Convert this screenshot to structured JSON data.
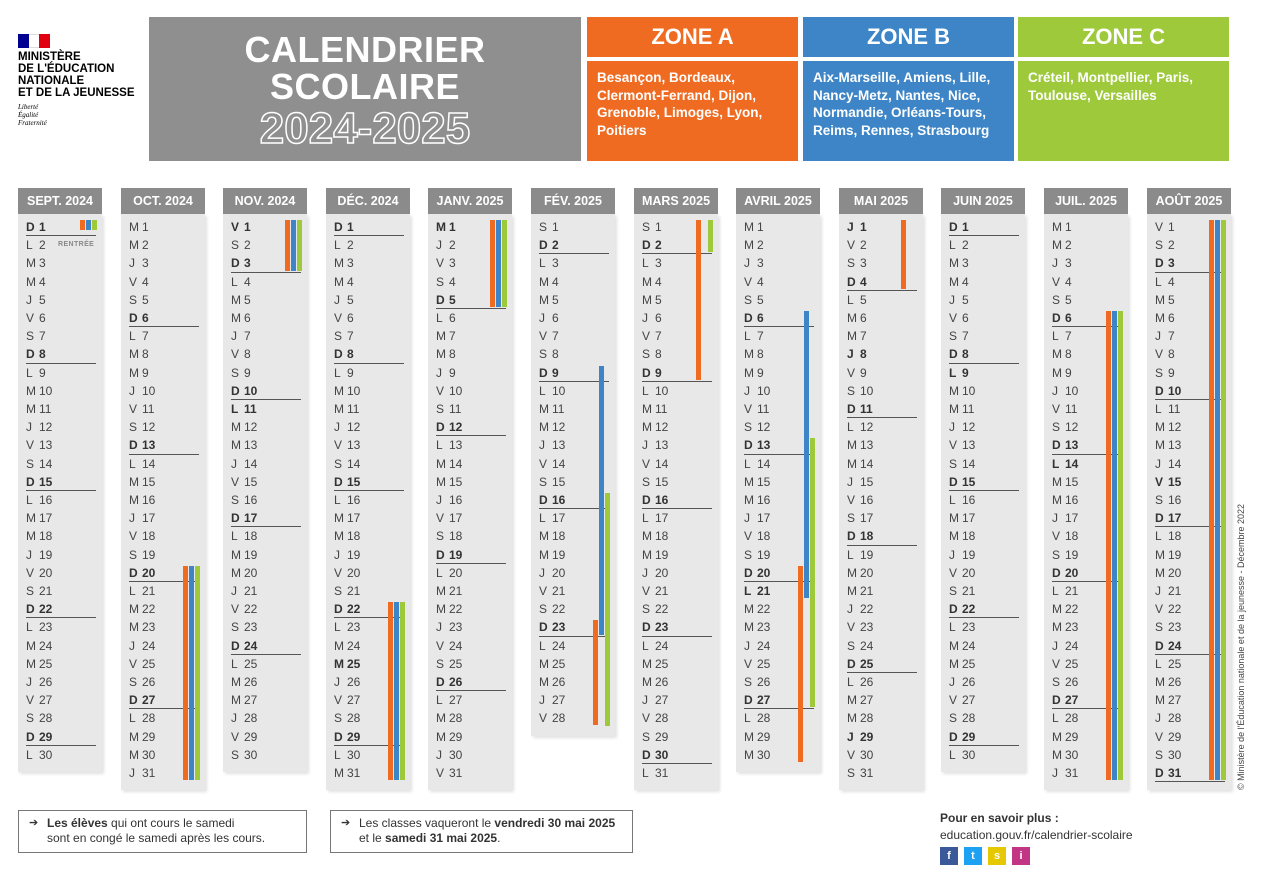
{
  "logo": {
    "lines": [
      "MINISTÈRE",
      "DE L'ÉDUCATION",
      "NATIONALE",
      "ET DE LA JEUNESSE"
    ],
    "motto": [
      "Liberté",
      "Égalité",
      "Fraternité"
    ],
    "flag_colors": [
      "#000091",
      "#ffffff",
      "#e1000f"
    ]
  },
  "title": {
    "line1": "CALENDRIER",
    "line2": "SCOLAIRE",
    "years": "2024-2025"
  },
  "colors": {
    "zone_a": "#ef6b22",
    "zone_b": "#3d85c6",
    "zone_c": "#9dc93b",
    "header": "#8b8b8b",
    "column": "#e8e8e8"
  },
  "zones": [
    {
      "label": "ZONE A",
      "cities": "Besançon, Bordeaux, Clermont-Ferrand, Dijon, Grenoble, Limoges, Lyon, Poitiers"
    },
    {
      "label": "ZONE B",
      "cities": "Aix-Marseille, Amiens, Lille, Nancy-Metz, Nantes, Nice, Normandie, Orléans-Tours, Reims, Rennes, Strasbourg"
    },
    {
      "label": "ZONE C",
      "cities": "Créteil, Montpellier, Paris, Toulouse, Versailles"
    }
  ],
  "rentree_label": "RENTRÉE",
  "months": [
    {
      "name": "SEPT. 2024",
      "days": 30,
      "first": "D",
      "bold": [
        1,
        8,
        15,
        22,
        29
      ],
      "holidays": []
    },
    {
      "name": "OCT. 2024",
      "days": 31,
      "first": "M",
      "bold": [
        6,
        13,
        20,
        27
      ],
      "holidays": [
        {
          "zone": "a",
          "from": 20,
          "to": 31
        },
        {
          "zone": "b",
          "from": 20,
          "to": 31
        },
        {
          "zone": "c",
          "from": 20,
          "to": 31
        }
      ]
    },
    {
      "name": "NOV. 2024",
      "days": 30,
      "first": "V",
      "bold": [
        1,
        3,
        10,
        11,
        17,
        24
      ],
      "holidays": [
        {
          "zone": "a",
          "from": 1,
          "to": 3
        },
        {
          "zone": "b",
          "from": 1,
          "to": 3
        },
        {
          "zone": "c",
          "from": 1,
          "to": 3
        }
      ]
    },
    {
      "name": "DÉC. 2024",
      "days": 31,
      "first": "D",
      "bold": [
        1,
        8,
        15,
        22,
        25,
        29
      ],
      "holidays": [
        {
          "zone": "a",
          "from": 22,
          "to": 31
        },
        {
          "zone": "b",
          "from": 22,
          "to": 31
        },
        {
          "zone": "c",
          "from": 22,
          "to": 31
        }
      ]
    },
    {
      "name": "JANV. 2025",
      "days": 31,
      "first": "M",
      "bold": [
        1,
        5,
        12,
        19,
        26
      ],
      "holidays": [
        {
          "zone": "a",
          "from": 1,
          "to": 5
        },
        {
          "zone": "b",
          "from": 1,
          "to": 5
        },
        {
          "zone": "c",
          "from": 1,
          "to": 5
        }
      ]
    },
    {
      "name": "FÉV. 2025",
      "days": 28,
      "first": "S",
      "bold": [
        2,
        9,
        16,
        23
      ],
      "holidays": [
        {
          "zone": "a",
          "from": 23,
          "to": 28
        },
        {
          "zone": "b",
          "from": 9,
          "to": 23
        },
        {
          "zone": "c",
          "from": 16,
          "to": 28
        }
      ]
    },
    {
      "name": "MARS 2025",
      "days": 31,
      "first": "S",
      "bold": [
        2,
        9,
        16,
        23,
        30
      ],
      "holidays": [
        {
          "zone": "a",
          "from": 1,
          "to": 9
        },
        {
          "zone": "c",
          "from": 1,
          "to": 2
        }
      ]
    },
    {
      "name": "AVRIL 2025",
      "days": 30,
      "first": "M",
      "bold": [
        6,
        13,
        20,
        21,
        27
      ],
      "holidays": [
        {
          "zone": "a",
          "from": 20,
          "to": 30
        },
        {
          "zone": "b",
          "from": 6,
          "to": 21
        },
        {
          "zone": "c",
          "from": 13,
          "to": 27
        }
      ]
    },
    {
      "name": "MAI 2025",
      "days": 31,
      "first": "J",
      "bold": [
        1,
        4,
        8,
        11,
        18,
        25,
        29
      ],
      "holidays": [
        {
          "zone": "a",
          "from": 1,
          "to": 4
        }
      ]
    },
    {
      "name": "JUIN 2025",
      "days": 30,
      "first": "D",
      "bold": [
        1,
        8,
        9,
        15,
        22,
        29
      ],
      "holidays": []
    },
    {
      "name": "JUIL. 2025",
      "days": 31,
      "first": "M",
      "bold": [
        6,
        13,
        14,
        20,
        27
      ],
      "holidays": [
        {
          "zone": "a",
          "from": 6,
          "to": 31
        },
        {
          "zone": "b",
          "from": 6,
          "to": 31
        },
        {
          "zone": "c",
          "from": 6,
          "to": 31
        }
      ]
    },
    {
      "name": "AOÛT 2025",
      "days": 31,
      "first": "V",
      "bold": [
        3,
        10,
        15,
        17,
        24,
        31
      ],
      "holidays": [
        {
          "zone": "a",
          "from": 1,
          "to": 31
        },
        {
          "zone": "b",
          "from": 1,
          "to": 31
        },
        {
          "zone": "c",
          "from": 1,
          "to": 31
        }
      ]
    }
  ],
  "notes": {
    "left_bold": "Les élèves",
    "left_rest1": " qui ont cours le samedi",
    "left_line2": "sont en congé le samedi après les cours.",
    "right_pre": "Les classes vaqueront le ",
    "right_bold1": "vendredi 30 mai 2025",
    "right_mid": "et le ",
    "right_bold2": "samedi 31 mai 2025",
    "right_end": "."
  },
  "more": {
    "label": "Pour en savoir plus :",
    "url": "education.gouv.fr/calendrier-scolaire"
  },
  "social_icons": [
    {
      "name": "facebook-icon",
      "glyph": "f",
      "color": "#3b5998"
    },
    {
      "name": "twitter-icon",
      "glyph": "t",
      "color": "#1da1f2"
    },
    {
      "name": "snapchat-icon",
      "glyph": "s",
      "color": "#e6c800"
    },
    {
      "name": "instagram-icon",
      "glyph": "i",
      "color": "#c13584"
    }
  ],
  "copyright": "© Ministère de l'Éducation nationale et de la jeunesse - Décembre 2022"
}
